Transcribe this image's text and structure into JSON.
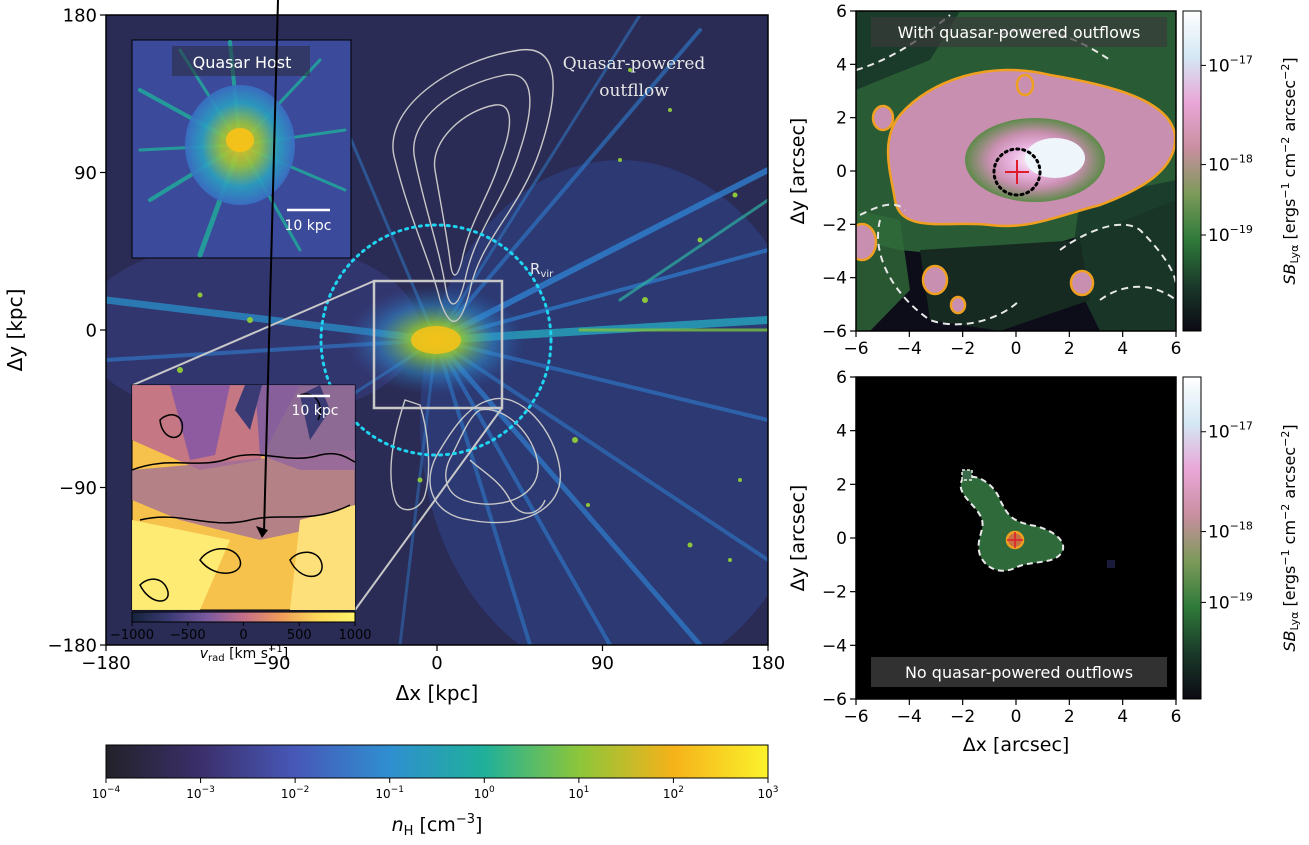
{
  "chart_data": [
    {
      "type": "heatmap",
      "title": "",
      "xlabel": "Δx [kpc]",
      "ylabel": "Δy [kpc]",
      "xlim": [
        -180,
        180
      ],
      "ylim": [
        -180,
        180
      ],
      "x_ticks": [
        "−180",
        "−90",
        "0",
        "90",
        "180"
      ],
      "y_ticks": [
        "180",
        "90",
        "0",
        "−90",
        "−180"
      ],
      "annotations": {
        "outflow": [
          "Quasar-powered",
          "outfllow"
        ],
        "rvir": "R",
        "rvir_sub": "vir"
      },
      "colorbar": {
        "label": "n",
        "label_sub": "H",
        "label_unit": " [cm",
        "label_exp": "−3",
        "label_end": "]",
        "scale": "log",
        "ticks": [
          "−4",
          "−3",
          "−2",
          "−1",
          "0",
          "1",
          "2",
          "3"
        ],
        "colors": [
          "#222229",
          "#3b2f6b",
          "#4758b8",
          "#2f8fd0",
          "#1fb09a",
          "#8cc63a",
          "#f5b21a",
          "#fbf22b"
        ]
      },
      "insets": [
        {
          "title": "Quasar Host",
          "scale_bar": "10 kpc"
        },
        {
          "scale_bar": "10 kpc",
          "colorbar": {
            "label": "v",
            "label_sub": "rad",
            "label_unit": " [km s",
            "label_exp": "−1",
            "label_end": "]",
            "ticks": [
              "−1000",
              "−500",
              "0",
              "500",
              "1000"
            ],
            "colors": [
              "#16233c",
              "#3a3b74",
              "#7a5aa0",
              "#c56f8a",
              "#ee9b5b",
              "#fdd85a",
              "#fff36a"
            ]
          }
        }
      ],
      "colors": {
        "background": "#2a2c52",
        "filament": "#2f7fd0",
        "contour": "#c8c8c8",
        "rvir_circle": "#1ed4f0",
        "box": "#c8c8c8"
      }
    },
    {
      "type": "heatmap",
      "panel_label": "With quasar-powered outflows",
      "xlabel": "",
      "ylabel": "Δy [arcsec]",
      "xlim": [
        -6,
        6
      ],
      "ylim": [
        -6,
        6
      ],
      "x_ticks": [
        "−6",
        "−4",
        "−2",
        "0",
        "2",
        "4",
        "6"
      ],
      "y_ticks": [
        "6",
        "4",
        "2",
        "0",
        "−2",
        "−4",
        "−6"
      ],
      "colorbar": {
        "label": "SB",
        "label_sub": "Lyα",
        "label_unit": " [ergs",
        "label_exp1": "−1",
        "label_unit2": " cm",
        "label_exp2": "−2",
        "label_unit3": " arcsec",
        "label_exp3": "−2",
        "label_end": "]",
        "ticks": [
          "−17",
          "−18",
          "−19"
        ],
        "tick_base": "10",
        "colors": [
          "#0c0a14",
          "#1a3a2a",
          "#2f7a3a",
          "#7c9a5a",
          "#c98fa0",
          "#e9a7d8",
          "#d4e8f4",
          "#ffffff"
        ]
      }
    },
    {
      "type": "heatmap",
      "panel_label": "No quasar-powered outflows",
      "xlabel": "Δx [arcsec]",
      "ylabel": "Δy [arcsec]",
      "xlim": [
        -6,
        6
      ],
      "ylim": [
        -6,
        6
      ],
      "x_ticks": [
        "−6",
        "−4",
        "−2",
        "0",
        "2",
        "4",
        "6"
      ],
      "y_ticks": [
        "6",
        "4",
        "2",
        "0",
        "−2",
        "−4",
        "−6"
      ],
      "colorbar": {
        "label": "SB",
        "label_sub": "Lyα",
        "label_unit": " [ergs",
        "label_exp1": "−1",
        "label_unit2": " cm",
        "label_exp2": "−2",
        "label_unit3": " arcsec",
        "label_exp3": "−2",
        "label_end": "]",
        "ticks": [
          "−17",
          "−18",
          "−19"
        ],
        "tick_base": "10"
      }
    }
  ]
}
